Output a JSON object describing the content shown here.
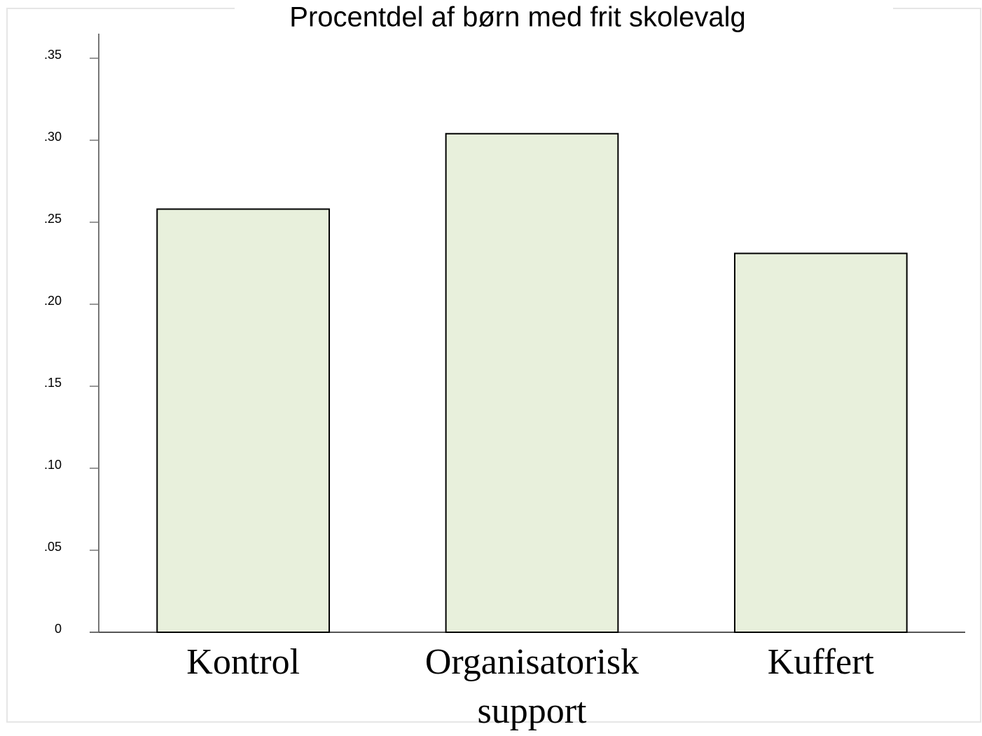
{
  "chart_data": {
    "type": "bar",
    "title": "Procentdel af børn med frit skolevalg",
    "categories": [
      "Kontrol",
      "Organisatorisk support",
      "Kuffert"
    ],
    "values": [
      0.258,
      0.304,
      0.231
    ],
    "color": "#e8f0dc",
    "ylim": [
      0,
      0.365
    ],
    "yticks": [
      0,
      {
        "value": 0.05,
        "label": ".05"
      },
      {
        "value": 0.1,
        "label": ".10"
      },
      {
        "value": 0.15,
        "label": ".15"
      },
      {
        "value": 0.2,
        "label": ".20"
      },
      {
        "value": 0.25,
        "label": ".25"
      },
      {
        "value": 0.3,
        "label": ".30"
      },
      {
        "value": 0.35,
        "label": ".35"
      }
    ],
    "grid": false
  }
}
